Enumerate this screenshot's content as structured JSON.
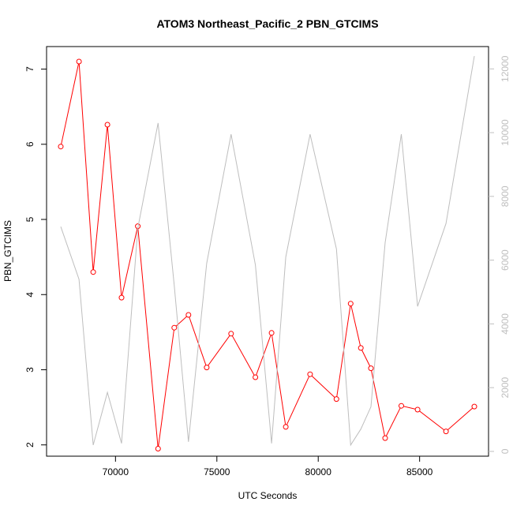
{
  "chart_data": {
    "type": "line",
    "title": "ATOM3 Northeast_Pacific_2 PBN_GTCIMS",
    "xlabel": "UTC Seconds",
    "ylabel": "PBN_GTCIMS",
    "y2label": "",
    "xlim": [
      66600,
      88400
    ],
    "ylim": [
      1.85,
      7.3
    ],
    "y2lim": [
      -150,
      12700
    ],
    "x_ticks": [
      70000,
      75000,
      80000,
      85000
    ],
    "y_ticks": [
      2,
      3,
      4,
      5,
      6,
      7
    ],
    "y2_ticks": [
      0,
      2000,
      4000,
      6000,
      8000,
      10000,
      12000
    ],
    "series": [
      {
        "color": "#ff0000",
        "marker": "open-circle",
        "axis": "left",
        "x": [
          67300,
          68200,
          68900,
          69600,
          70300,
          71100,
          72100,
          72900,
          73600,
          74500,
          75700,
          76900,
          77700,
          78400,
          79600,
          80900,
          81600,
          82100,
          82600,
          83300,
          84100,
          84900,
          86300,
          87700
        ],
        "y": [
          5.97,
          7.1,
          4.3,
          6.26,
          3.96,
          4.91,
          1.95,
          3.56,
          3.73,
          3.03,
          3.48,
          2.9,
          3.49,
          2.24,
          2.94,
          2.61,
          3.88,
          3.29,
          3.02,
          2.09,
          2.52,
          2.47,
          2.18,
          2.51
        ]
      },
      {
        "color": "#bebebe",
        "marker": "none",
        "axis": "right",
        "x": [
          67300,
          68200,
          68900,
          69600,
          70300,
          71100,
          72100,
          72900,
          73600,
          74500,
          75700,
          76900,
          77700,
          78400,
          79600,
          80900,
          81600,
          82100,
          82600,
          83300,
          84100,
          84900,
          86300,
          87700
        ],
        "y": [
          7050,
          5400,
          200,
          1850,
          250,
          7000,
          10300,
          5200,
          300,
          5900,
          9950,
          5850,
          250,
          6100,
          9950,
          6350,
          200,
          700,
          1400,
          6550,
          9950,
          4550,
          7150,
          12400
        ]
      }
    ]
  }
}
